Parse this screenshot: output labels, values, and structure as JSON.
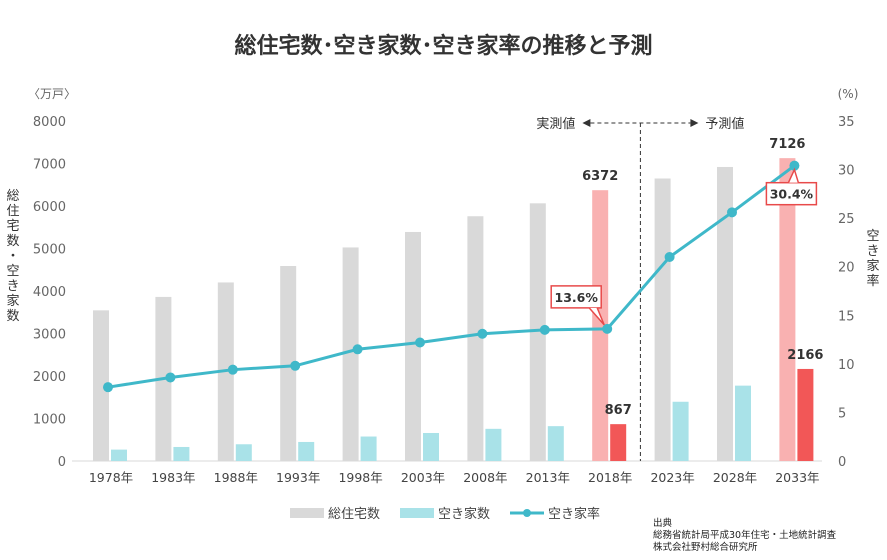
{
  "chart_data": {
    "type": "bar+line",
    "title": "総住宅数･空き家数･空き家率の推移と予測",
    "categories": [
      "1978年",
      "1983年",
      "1988年",
      "1993年",
      "1998年",
      "2003年",
      "2008年",
      "2013年",
      "2018年",
      "2023年",
      "2028年",
      "2033年"
    ],
    "series": [
      {
        "name": "総住宅数",
        "type": "bar",
        "axis": "left",
        "color": "#d9d9d9",
        "highlight_color": "#f9b1b1",
        "values": [
          3545,
          3861,
          4201,
          4588,
          5025,
          5389,
          5759,
          6063,
          6372,
          6647,
          6918,
          7126
        ]
      },
      {
        "name": "空き家数",
        "type": "bar",
        "axis": "left",
        "color": "#a9e2e8",
        "highlight_color": "#f25757",
        "values": [
          268,
          330,
          394,
          448,
          576,
          659,
          757,
          820,
          867,
          1394,
          1773,
          2166
        ]
      },
      {
        "name": "空き家率",
        "type": "line",
        "axis": "right",
        "color": "#3fb8c9",
        "values": [
          7.6,
          8.6,
          9.4,
          9.8,
          11.5,
          12.2,
          13.1,
          13.5,
          13.6,
          21.0,
          25.6,
          30.4
        ]
      }
    ],
    "highlight_indices": [
      8,
      11
    ],
    "data_labels": [
      {
        "series": "総住宅数",
        "index": 8,
        "text": "6372"
      },
      {
        "series": "総住宅数",
        "index": 11,
        "text": "7126"
      },
      {
        "series": "空き家数",
        "index": 8,
        "text": "867"
      },
      {
        "series": "空き家数",
        "index": 11,
        "text": "2166"
      },
      {
        "series": "空き家率",
        "index": 8,
        "text": "13.6%"
      },
      {
        "series": "空き家率",
        "index": 11,
        "text": "30.4%"
      }
    ],
    "left_axis": {
      "unit": "〈万戸〉",
      "label": "総住宅数・空き家数",
      "ylim": [
        0,
        8000
      ],
      "ticks": [
        "0",
        "1000",
        "2000",
        "3000",
        "4000",
        "5000",
        "6000",
        "7000",
        "8000"
      ]
    },
    "right_axis": {
      "unit": "(%)",
      "label": "空き家率",
      "ylim": [
        0,
        35
      ],
      "ticks": [
        "0",
        "5",
        "10",
        "15",
        "20",
        "25",
        "30",
        "35"
      ]
    },
    "annotations": {
      "actual": "実測値",
      "forecast": "予測値"
    },
    "legend_position": "bottom"
  },
  "source": {
    "heading": "出典",
    "line1": "総務省統計局平成30年住宅・土地統計調査",
    "line2": "株式会社野村総合研究所"
  }
}
